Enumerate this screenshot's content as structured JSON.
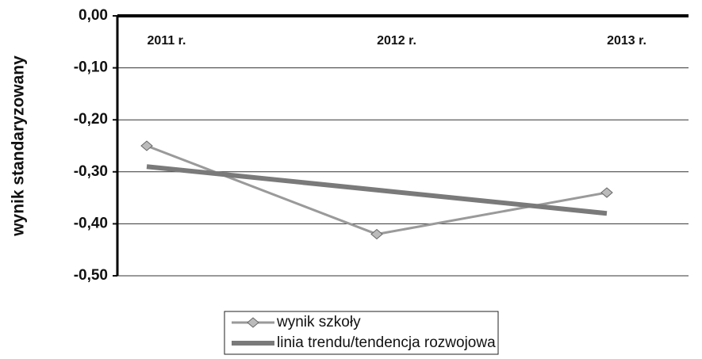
{
  "chart_data": {
    "type": "line",
    "y_label": "wynik standaryzowany",
    "categories": [
      "2011 r.",
      "2012 r.",
      "2013 r."
    ],
    "series": [
      {
        "name": "wynik szkoły",
        "color": "#9a9a9a",
        "values": [
          -0.25,
          -0.42,
          -0.34
        ]
      },
      {
        "name": "linia trendu/tendencja rozwojowa",
        "color": "#7a7a7a",
        "values": [
          -0.29,
          -0.335,
          -0.38
        ]
      }
    ],
    "ylim": [
      -0.5,
      0
    ],
    "yticks": [
      {
        "value": 0,
        "label": "0,00"
      },
      {
        "value": -0.1,
        "label": "-0,10"
      },
      {
        "value": -0.2,
        "label": "-0,20"
      },
      {
        "value": -0.3,
        "label": "-0,30"
      },
      {
        "value": -0.4,
        "label": "-0,40"
      },
      {
        "value": -0.5,
        "label": "-0,50"
      }
    ],
    "grid": true
  }
}
